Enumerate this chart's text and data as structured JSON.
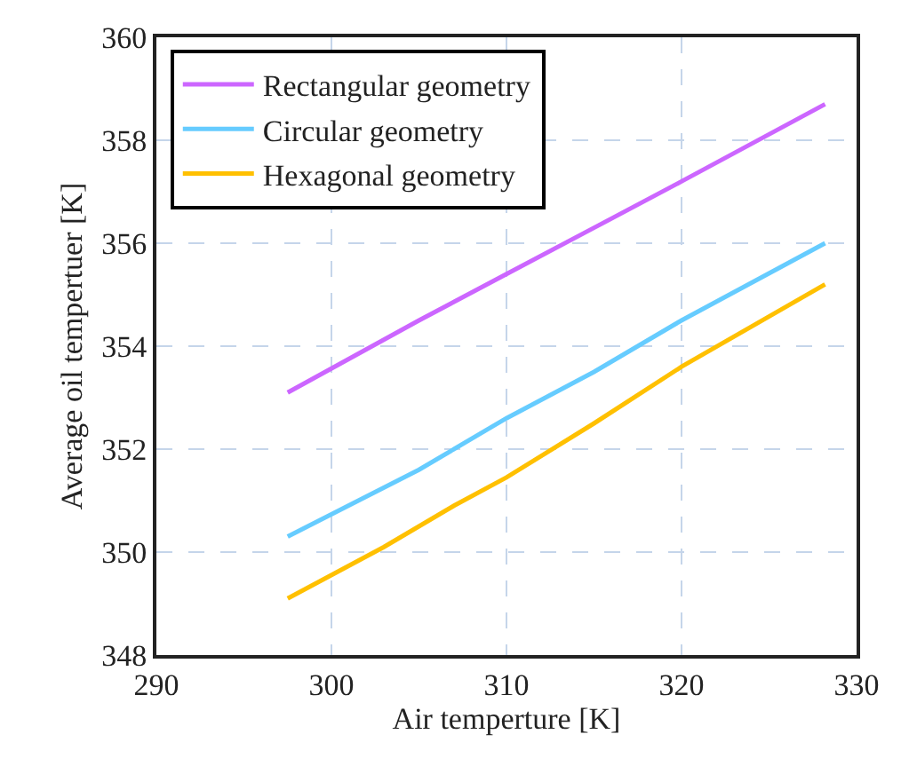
{
  "chart_data": {
    "type": "line",
    "xlabel": "Air temperture [K]",
    "ylabel": "Average oil tempertuer [K]",
    "xlim": [
      290,
      330
    ],
    "xticks": [
      290,
      300,
      310,
      320,
      330
    ],
    "ylim": [
      348,
      360
    ],
    "yticks": [
      348,
      350,
      352,
      354,
      356,
      358,
      360
    ],
    "grid": true,
    "legend": "top left",
    "line_style": "solid",
    "series": [
      {
        "name": "Rectangular geometry",
        "color": "#cc66ff",
        "x": [
          297.5,
          305,
          310,
          315,
          320,
          328.2
        ],
        "values": [
          353.1,
          354.5,
          355.4,
          356.3,
          357.2,
          358.7
        ]
      },
      {
        "name": "Circular geometry",
        "color": "#66ccff",
        "x": [
          297.5,
          305,
          310,
          315,
          320,
          328.2
        ],
        "values": [
          350.3,
          351.6,
          352.6,
          353.5,
          354.5,
          356.0
        ]
      },
      {
        "name": "Hexagonal geometry",
        "color": "#ffc000",
        "x": [
          297.5,
          303,
          307,
          310,
          315,
          320,
          328.2
        ],
        "values": [
          349.1,
          350.1,
          350.9,
          351.45,
          352.5,
          353.6,
          355.2
        ]
      }
    ]
  }
}
